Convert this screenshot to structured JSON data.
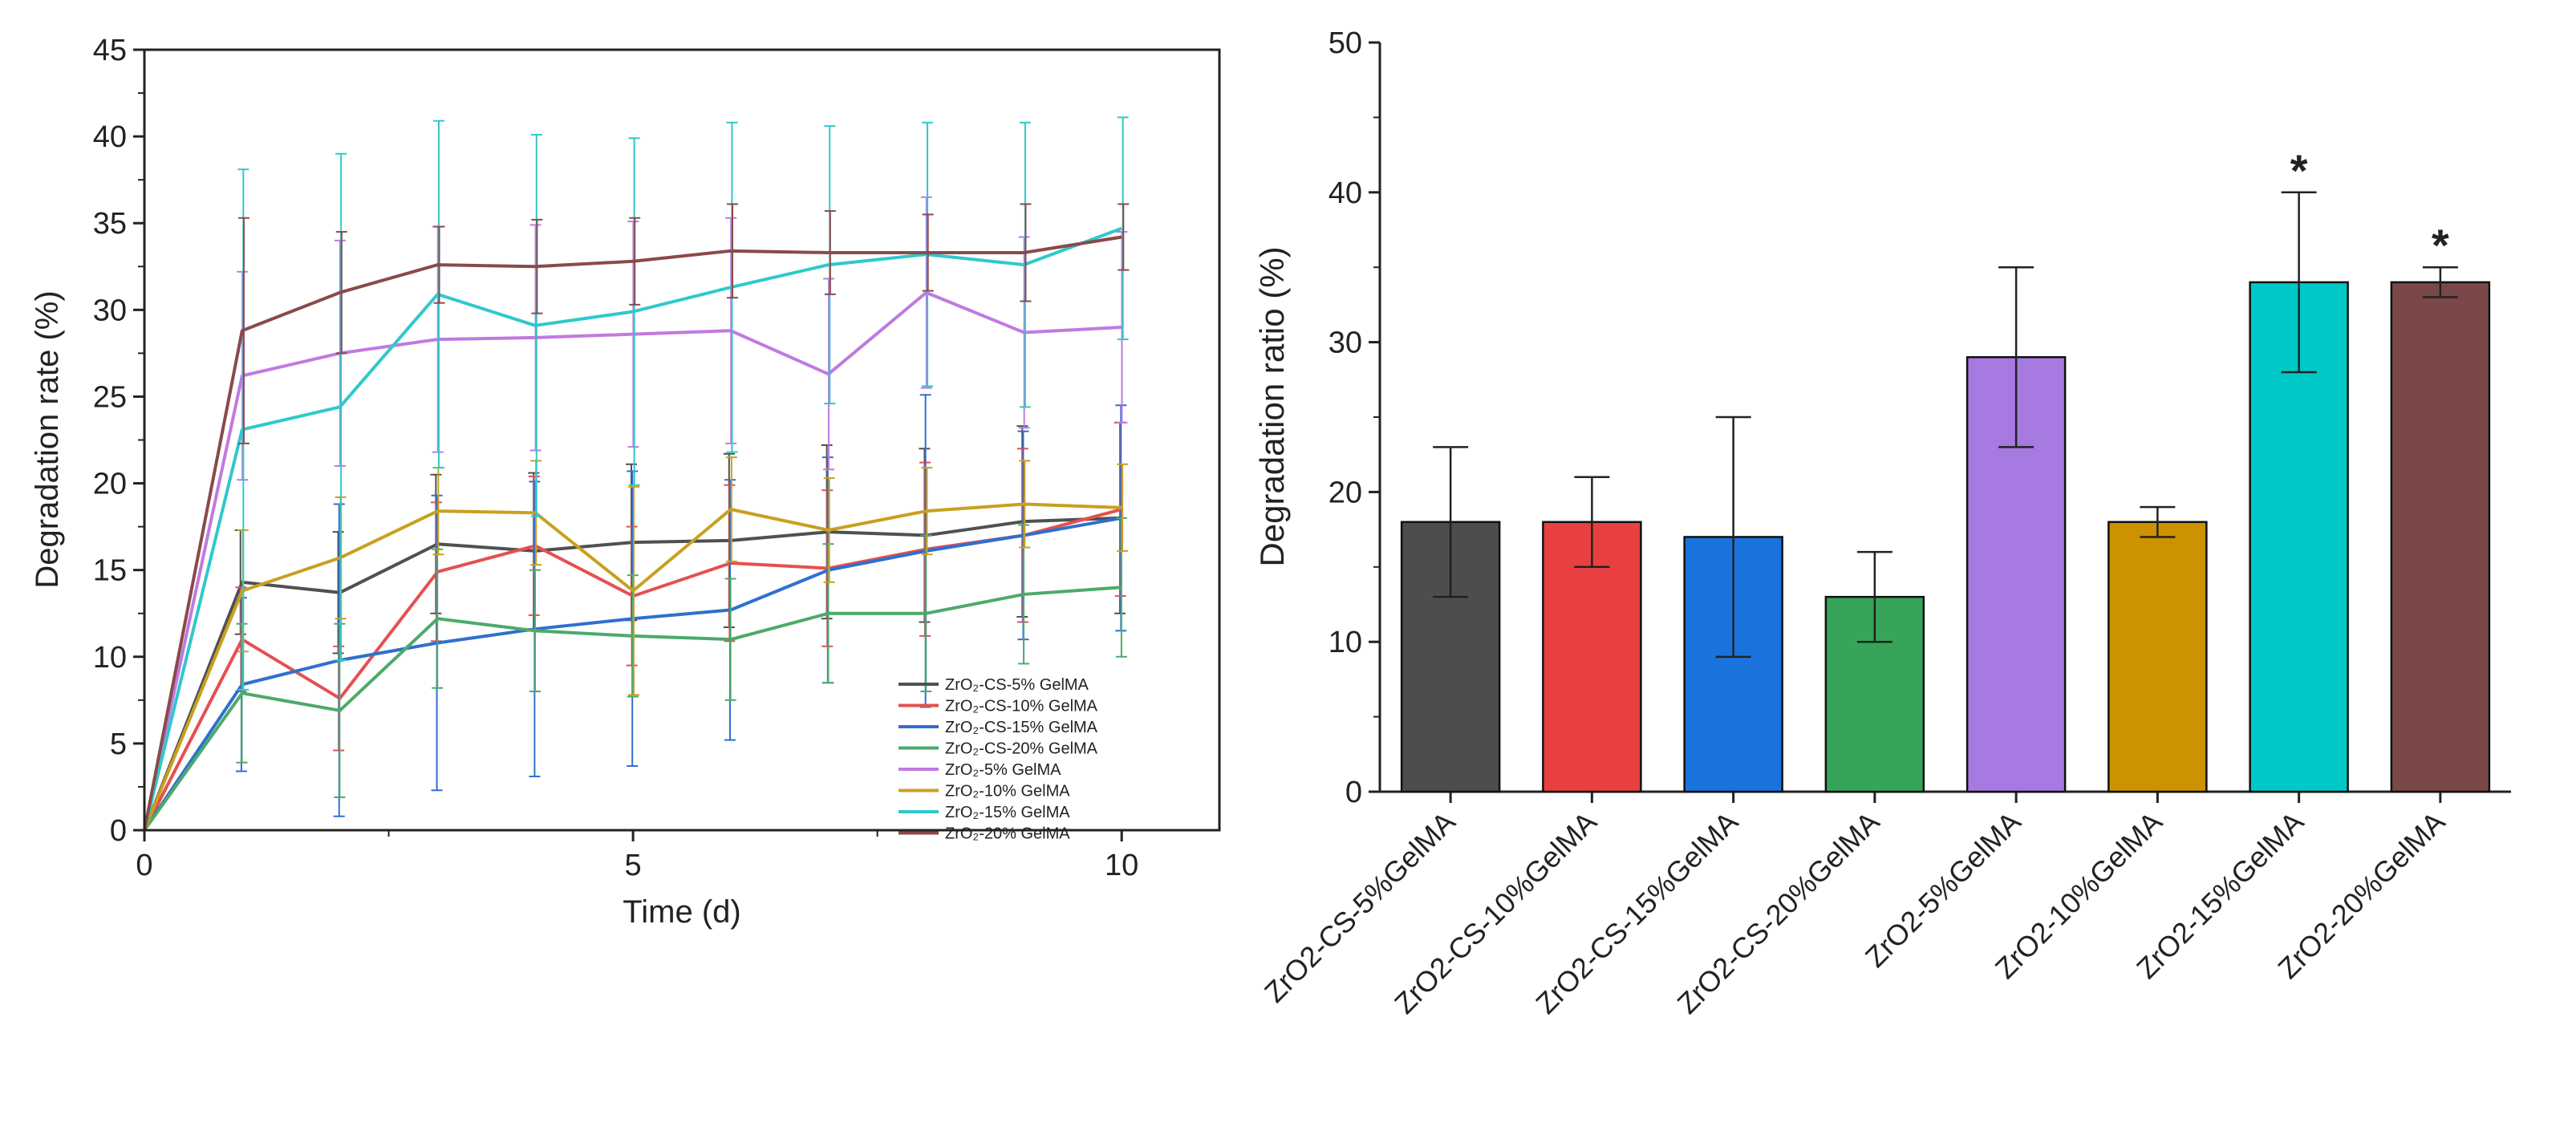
{
  "chart_data": [
    {
      "type": "line",
      "title": "",
      "xlabel": "Time (d)",
      "ylabel": "Degradation rate (%)",
      "xlim": [
        0,
        11
      ],
      "ylim": [
        0,
        45
      ],
      "x_ticks": [
        0,
        5,
        10
      ],
      "y_ticks": [
        0,
        5,
        10,
        15,
        20,
        25,
        30,
        35,
        40,
        45
      ],
      "legend_position": "bottom-right",
      "x": [
        0,
        1,
        2,
        3,
        4,
        5,
        6,
        7,
        8,
        9,
        10
      ],
      "series": [
        {
          "name": "ZrO₂-CS-5% GelMA",
          "color": "#505050",
          "values": [
            0,
            14.3,
            13.7,
            16.5,
            16.1,
            16.6,
            16.7,
            17.2,
            17.0,
            17.8,
            18.0
          ],
          "errors": [
            0,
            3.0,
            3.5,
            4.0,
            4.5,
            4.5,
            5.0,
            5.0,
            5.0,
            5.5,
            5.5
          ]
        },
        {
          "name": "ZrO₂-CS-10% GelMA",
          "color": "#e55050",
          "values": [
            0,
            11.0,
            7.6,
            14.9,
            16.4,
            13.5,
            15.4,
            15.1,
            16.2,
            17.0,
            18.5
          ],
          "errors": [
            0,
            3.0,
            3.0,
            4.0,
            4.0,
            4.0,
            4.5,
            4.5,
            5.0,
            5.0,
            5.0
          ]
        },
        {
          "name": "ZrO₂-CS-15% GelMA",
          "color": "#2f6fd0",
          "values": [
            0,
            8.4,
            9.8,
            10.8,
            11.6,
            12.2,
            12.7,
            15.0,
            16.1,
            17.0,
            18.0
          ],
          "errors": [
            0,
            5.0,
            9.0,
            8.5,
            8.5,
            8.5,
            7.5,
            6.5,
            9.0,
            6.0,
            6.5
          ]
        },
        {
          "name": "ZrO₂-CS-20% GelMA",
          "color": "#4caa6a",
          "values": [
            0,
            7.9,
            6.9,
            12.2,
            11.5,
            11.2,
            11.0,
            12.5,
            12.5,
            13.6,
            14.0
          ],
          "errors": [
            0,
            4.0,
            5.0,
            4.0,
            3.5,
            3.5,
            3.5,
            4.0,
            4.5,
            4.0,
            4.0
          ]
        },
        {
          "name": "ZrO₂-5% GelMA",
          "color": "#c07ae0",
          "values": [
            0,
            26.2,
            27.5,
            28.3,
            28.4,
            28.6,
            28.8,
            26.3,
            31.0,
            28.7,
            29.0
          ],
          "errors": [
            0,
            6.0,
            6.5,
            6.5,
            6.5,
            6.5,
            6.5,
            5.5,
            5.5,
            5.5,
            5.5
          ]
        },
        {
          "name": "ZrO₂-10% GelMA",
          "color": "#c8a020",
          "values": [
            0,
            13.8,
            15.7,
            18.4,
            18.3,
            13.8,
            18.5,
            17.3,
            18.4,
            18.8,
            18.6
          ],
          "errors": [
            0,
            3.5,
            3.5,
            2.5,
            3.0,
            6.0,
            3.0,
            3.0,
            2.5,
            2.5,
            2.5
          ]
        },
        {
          "name": "ZrO₂-15% GelMA",
          "color": "#30c8cc",
          "values": [
            0,
            23.1,
            24.4,
            30.9,
            29.1,
            29.9,
            31.3,
            32.6,
            33.2,
            32.6,
            34.7
          ],
          "errors": [
            0,
            15.0,
            14.6,
            10.0,
            11.0,
            10.0,
            9.5,
            8.0,
            7.6,
            8.2,
            6.4
          ]
        },
        {
          "name": "ZrO₂-20% GelMA",
          "color": "#8a4a4a",
          "values": [
            0,
            28.8,
            31.0,
            32.6,
            32.5,
            32.8,
            33.4,
            33.3,
            33.3,
            33.3,
            34.2
          ],
          "errors": [
            0,
            6.5,
            3.5,
            2.2,
            2.7,
            2.5,
            2.7,
            2.4,
            2.2,
            2.8,
            1.9
          ]
        }
      ]
    },
    {
      "type": "bar",
      "title": "",
      "xlabel": "",
      "ylabel": "Degradation ratio (%)",
      "ylim": [
        0,
        50
      ],
      "y_ticks": [
        0,
        10,
        20,
        30,
        40,
        50
      ],
      "categories": [
        "ZrO2-CS-5%GelMA",
        "ZrO2-CS-10%GelMA",
        "ZrO2-CS-15%GelMA",
        "ZrO2-CS-20%GelMA",
        "ZrO2-5%GelMA",
        "ZrO2-10%GelMA",
        "ZrO2-15%GelMA",
        "ZrO2-20%GelMA"
      ],
      "values": [
        18,
        18,
        17,
        13,
        29,
        18,
        34,
        34
      ],
      "errors": [
        5,
        3,
        8,
        3,
        6,
        1,
        6,
        1
      ],
      "colors": [
        "#4d4d4d",
        "#e84040",
        "#1a73dc",
        "#36a55a",
        "#a67ae0",
        "#cc9200",
        "#00c8c8",
        "#7a4848"
      ],
      "annotations": [
        "",
        "",
        "",
        "",
        "",
        "",
        "*",
        "*"
      ]
    }
  ]
}
